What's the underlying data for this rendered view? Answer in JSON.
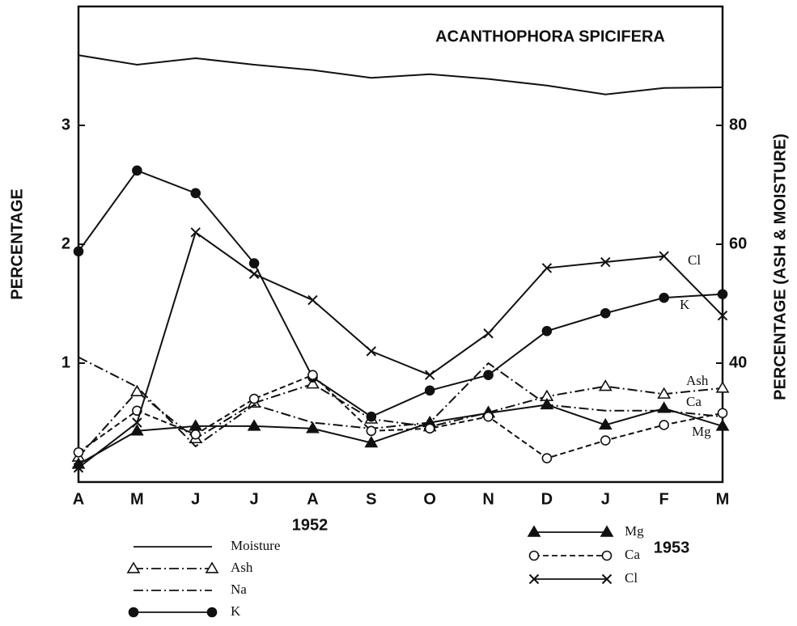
{
  "chart_data": {
    "type": "line",
    "title": "ACANTHOPHORA SPICIFERA",
    "y_label": "PERCENTAGE",
    "y2_label": "PERCENTAGE (ASH & MOISTURE)",
    "categories": [
      "A",
      "M",
      "J",
      "J",
      "A",
      "S",
      "O",
      "N",
      "D",
      "J",
      "F",
      "M"
    ],
    "annotations": [
      "1952",
      "1953"
    ],
    "ylim": [
      0,
      4
    ],
    "yticks": [
      1,
      2,
      3
    ],
    "y2lim": [
      20,
      100
    ],
    "y2ticks": [
      40,
      60,
      80
    ],
    "grid": false,
    "series": [
      {
        "name": "Moisture",
        "color": "#111",
        "axis": "y2",
        "linestyle": "solid",
        "marker": "none",
        "values": [
          91.8,
          90.2,
          91.3,
          90.2,
          89.3,
          88.0,
          88.6,
          87.8,
          86.7,
          85.2,
          86.3,
          86.4
        ]
      },
      {
        "name": "Ash",
        "color": "#111",
        "axis": "y2",
        "linestyle": "dashdot",
        "marker": "triangle-open",
        "values": [
          24.2,
          35.2,
          27.3,
          33.3,
          36.5,
          30.6,
          29.3,
          31.7,
          34.4,
          36.1,
          34.8,
          35.8
        ]
      },
      {
        "name": "Na",
        "color": "#111",
        "linestyle": "dashdot",
        "marker": "none",
        "values": [
          1.05,
          0.8,
          0.3,
          0.65,
          0.5,
          0.45,
          0.5,
          1.0,
          0.65,
          0.6,
          0.6,
          0.55
        ]
      },
      {
        "name": "K",
        "color": "#111",
        "linestyle": "solid",
        "marker": "circle-filled",
        "values": [
          1.94,
          2.62,
          2.43,
          1.84,
          0.88,
          0.55,
          0.77,
          0.9,
          1.27,
          1.42,
          1.55,
          1.58
        ]
      },
      {
        "name": "Mg",
        "color": "#111",
        "linestyle": "solid",
        "marker": "triangle-filled",
        "values": [
          0.15,
          0.43,
          0.47,
          0.47,
          0.45,
          0.33,
          0.5,
          0.58,
          0.65,
          0.48,
          0.62,
          0.47
        ]
      },
      {
        "name": "Ca",
        "color": "#111",
        "linestyle": "dashed",
        "marker": "circle-open",
        "values": [
          0.25,
          0.6,
          0.4,
          0.7,
          0.9,
          0.43,
          0.45,
          0.55,
          0.2,
          0.35,
          0.48,
          0.58
        ]
      },
      {
        "name": "Cl",
        "color": "#111",
        "linestyle": "solid",
        "marker": "x",
        "values": [
          0.12,
          0.5,
          2.1,
          1.75,
          1.53,
          1.1,
          0.9,
          1.25,
          1.8,
          1.85,
          1.9,
          1.4
        ]
      }
    ]
  }
}
